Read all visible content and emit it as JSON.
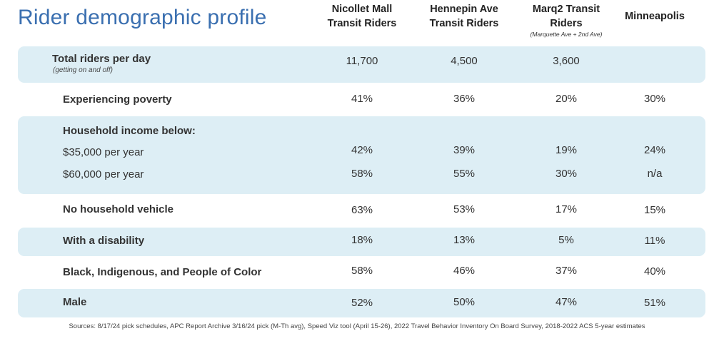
{
  "title": "Rider demographic profile",
  "columns": [
    {
      "line1": "Nicollet Mall",
      "line2": "Transit Riders",
      "sub": ""
    },
    {
      "line1": "Hennepin Ave",
      "line2": "Transit Riders",
      "sub": ""
    },
    {
      "line1": "Marq2 Transit",
      "line2": "Riders",
      "sub": "(Marquette Ave + 2nd Ave)"
    },
    {
      "line1": "Minneapolis",
      "line2": "",
      "sub": ""
    }
  ],
  "rows": {
    "total": {
      "label": "Total riders per day",
      "note": "(getting on and off)",
      "values": [
        "11,700",
        "4,500",
        "3,600",
        ""
      ]
    },
    "poverty": {
      "label": "Experiencing poverty",
      "values": [
        "41%",
        "36%",
        "20%",
        "30%"
      ]
    },
    "income_header": {
      "label": "Household income below:"
    },
    "income35": {
      "label": "$35,000 per year",
      "values": [
        "42%",
        "39%",
        "19%",
        "24%"
      ]
    },
    "income60": {
      "label": "$60,000 per year",
      "values": [
        "58%",
        "55%",
        "30%",
        "n/a"
      ]
    },
    "vehicle": {
      "label": "No household vehicle",
      "values": [
        "63%",
        "53%",
        "17%",
        "15%"
      ]
    },
    "disability": {
      "label": "With a disability",
      "values": [
        "18%",
        "13%",
        "5%",
        "11%"
      ]
    },
    "bipoc": {
      "label": "Black, Indigenous, and People of Color",
      "values": [
        "58%",
        "46%",
        "37%",
        "40%"
      ]
    },
    "male": {
      "label": "Male",
      "values": [
        "52%",
        "50%",
        "47%",
        "51%"
      ]
    }
  },
  "sources": "Sources: 8/17/24 pick schedules,  APC Report Archive 3/16/24 pick (M-Th avg), Speed Viz tool (April 15-26), 2022 Travel Behavior Inventory On Board Survey, 2018-2022 ACS 5-year estimates",
  "colors": {
    "title": "#3a6fb0",
    "band": "#ddeef5",
    "text": "#333333"
  }
}
